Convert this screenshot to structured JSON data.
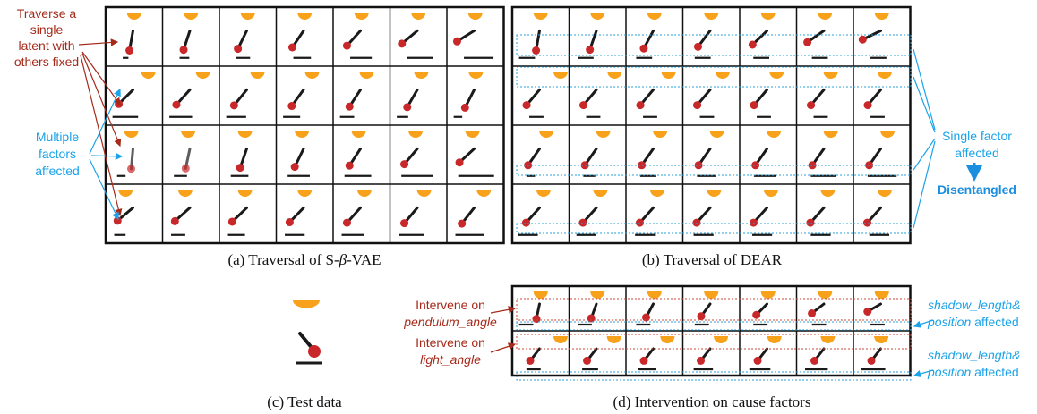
{
  "colors": {
    "sun": "#f7a21a",
    "ball": "#c8282a",
    "rod": "#1a1a1a",
    "shadow": "#1a1a1a",
    "annotation_red": "#a52a1a",
    "annotation_blue": "#1aa3e8",
    "dotted_blue": "#2a9fd8",
    "dotted_red": "#d04a3a"
  },
  "icons": [
    "sun-semicircle",
    "pendulum-rod",
    "pendulum-ball",
    "shadow-bar"
  ],
  "panels": {
    "a": {
      "caption_prefix": "(a) Traversal of S-",
      "caption_beta": "β",
      "caption_suffix": "-VAE",
      "annotation_red": [
        "Traverse a",
        "single",
        "latent with",
        "others fixed"
      ],
      "annotation_blue": [
        "Multiple",
        "factors",
        "affected"
      ]
    },
    "b": {
      "caption": "(b) Traversal of DEAR",
      "annotation_blue": [
        "Single factor",
        "affected"
      ],
      "annotation_bold": "Disentangled"
    },
    "c": {
      "caption": "(c) Test data"
    },
    "d": {
      "caption": "(d) Intervention on cause factors",
      "row1_label": "Intervene on",
      "row1_factor": "pendulum_angle",
      "row2_label": "Intervene on",
      "row2_factor": "light_angle",
      "effect_italic": "shadow_length&",
      "effect_italic2": "position",
      "effect_plain": " affected"
    }
  }
}
